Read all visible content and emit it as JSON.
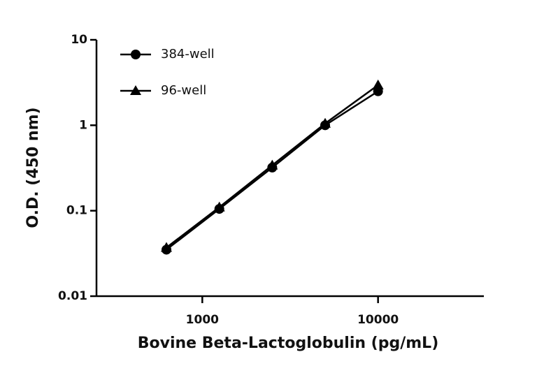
{
  "chart_data": {
    "type": "line",
    "x_label": "Bovine Beta-Lactoglobulin (pg/mL)",
    "y_label": "O.D. (450 nm)",
    "x": [
      625,
      1250,
      2500,
      5000,
      10000
    ],
    "series": [
      {
        "name": "384-well",
        "color": "#000000",
        "marker": "circle",
        "values": [
          0.035,
          0.105,
          0.32,
          1.0,
          2.5
        ]
      },
      {
        "name": "96-well",
        "color": "#000000",
        "marker": "triangle",
        "values": [
          0.037,
          0.11,
          0.34,
          1.05,
          2.95
        ]
      }
    ],
    "xlim": [
      250,
      40000
    ],
    "xticks": [
      1000,
      10000
    ],
    "xscale": "log",
    "ylim": [
      0.01,
      10
    ],
    "yticks": [
      0.01,
      0.1,
      1,
      10
    ],
    "yscale": "log",
    "legend": "upper left"
  }
}
